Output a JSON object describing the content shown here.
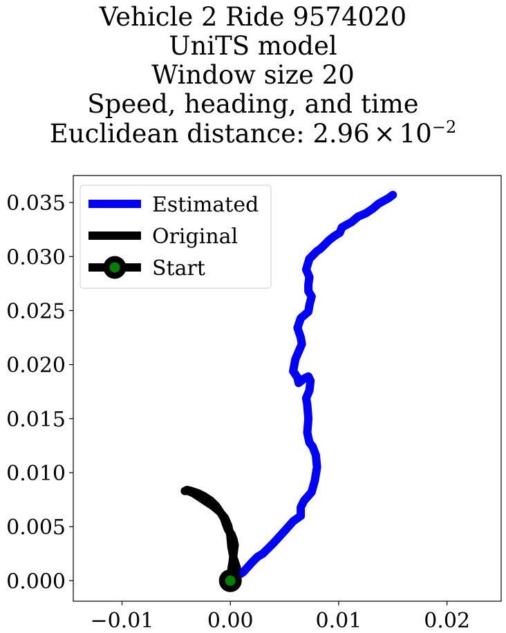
{
  "chart_data": {
    "type": "line",
    "title_lines": [
      "Vehicle 2 Ride 9574020",
      "UniTS model",
      "Window size 20",
      "Speed, heading, and time"
    ],
    "title_distance_prefix": "Euclidean distance: ",
    "title_distance_mantissa": "2.96",
    "title_distance_times": "×",
    "title_distance_base": "10",
    "title_distance_exponent": "−2",
    "xlabel": "",
    "ylabel": "",
    "xlim": [
      -0.0145,
      0.025
    ],
    "ylim": [
      -0.0019,
      0.0375
    ],
    "xticks": [
      -0.01,
      0.0,
      0.01,
      0.02
    ],
    "xtick_labels": [
      "−0.01",
      "0.00",
      "0.01",
      "0.02"
    ],
    "yticks": [
      0.0,
      0.005,
      0.01,
      0.015,
      0.02,
      0.025,
      0.03,
      0.035
    ],
    "ytick_labels": [
      "0.000",
      "0.005",
      "0.010",
      "0.015",
      "0.020",
      "0.025",
      "0.030",
      "0.035"
    ],
    "grid": false,
    "legend_position": "top-left",
    "series": [
      {
        "name": "Estimated",
        "color": "#0000ff",
        "x": [
          0.0,
          0.0012,
          0.002,
          0.0025,
          0.003,
          0.004,
          0.005,
          0.0058,
          0.0065,
          0.0065,
          0.0068,
          0.0075,
          0.0078,
          0.008,
          0.0079,
          0.0076,
          0.0073,
          0.0071,
          0.0072,
          0.0071,
          0.007,
          0.0073,
          0.0074,
          0.0072,
          0.0068,
          0.0063,
          0.0062,
          0.0058,
          0.006,
          0.0063,
          0.0066,
          0.0065,
          0.0062,
          0.0065,
          0.0072,
          0.0073,
          0.0075,
          0.0072,
          0.0072,
          0.0073,
          0.007,
          0.0073,
          0.0075,
          0.0077,
          0.008,
          0.0083,
          0.0087,
          0.0091,
          0.0096,
          0.0101,
          0.0103,
          0.0112,
          0.0118,
          0.0125,
          0.0131,
          0.0137,
          0.0146,
          0.015
        ],
        "y": [
          0.0,
          0.0008,
          0.0017,
          0.0022,
          0.0025,
          0.0035,
          0.0046,
          0.0055,
          0.006,
          0.0068,
          0.0074,
          0.0082,
          0.0093,
          0.0105,
          0.0116,
          0.0124,
          0.0128,
          0.0137,
          0.015,
          0.0163,
          0.0169,
          0.0176,
          0.0185,
          0.0189,
          0.0187,
          0.0183,
          0.0188,
          0.0194,
          0.0205,
          0.0212,
          0.0219,
          0.0225,
          0.0234,
          0.0243,
          0.0249,
          0.0255,
          0.0263,
          0.0268,
          0.0274,
          0.0281,
          0.0288,
          0.0298,
          0.03,
          0.0302,
          0.0305,
          0.0307,
          0.0311,
          0.0315,
          0.0319,
          0.0322,
          0.0327,
          0.0332,
          0.0337,
          0.034,
          0.0344,
          0.0349,
          0.0354,
          0.0357
        ]
      },
      {
        "name": "Original",
        "color": "#000000",
        "x": [
          0.0,
          0.0004,
          0.0006,
          0.0003,
          0.0001,
          0.0,
          -0.0002,
          -0.0005,
          -0.001,
          -0.0016,
          -0.0022,
          -0.0028,
          -0.0034,
          -0.0039,
          -0.0042,
          -0.004,
          -0.0036,
          -0.003,
          -0.0024,
          -0.0018,
          -0.0013,
          -0.0009,
          -0.0006,
          -0.0004,
          -0.0002,
          0.0001,
          0.0003,
          0.0004,
          0.0003,
          0.0002,
          0.0001,
          0.0002
        ],
        "y": [
          0.0,
          0.0006,
          0.0012,
          0.0021,
          0.0031,
          0.0042,
          0.0051,
          0.0058,
          0.0064,
          0.0069,
          0.0073,
          0.0077,
          0.0081,
          0.0083,
          0.0083,
          0.0084,
          0.0083,
          0.0081,
          0.0078,
          0.0074,
          0.0069,
          0.0063,
          0.0058,
          0.0052,
          0.0047,
          0.0043,
          0.0038,
          0.0033,
          0.0025,
          0.0017,
          0.0011,
          0.0004
        ]
      }
    ],
    "start_marker": {
      "name": "Start",
      "x": 0.0,
      "y": 0.0,
      "face_color": "#008000",
      "edge_color": "#000000"
    }
  }
}
